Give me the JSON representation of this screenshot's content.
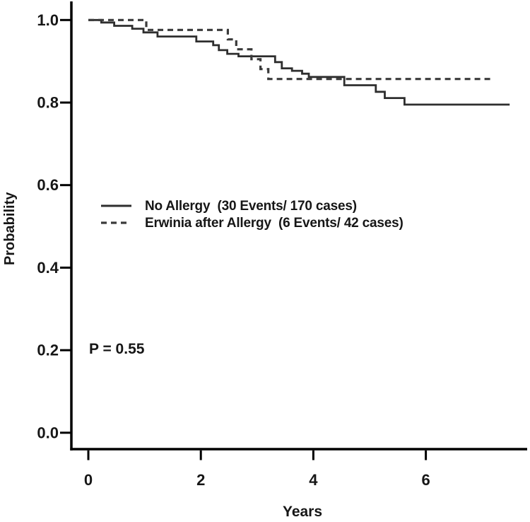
{
  "figure": {
    "background_color": "#ffffff",
    "axis_color": "#000000",
    "text_color": "#161616"
  },
  "chart_data": {
    "type": "line",
    "subtype": "kaplan_meier_step",
    "title": "",
    "xlabel": "Years",
    "ylabel": "Probability",
    "xlim": [
      0,
      7.8
    ],
    "ylim": [
      0.0,
      1.0
    ],
    "grid": false,
    "legend_position": "inside-left-middle",
    "xticks": [
      {
        "value": 0,
        "label": "0"
      },
      {
        "value": 2,
        "label": "2"
      },
      {
        "value": 4,
        "label": "4"
      },
      {
        "value": 6,
        "label": "6"
      }
    ],
    "yticks": [
      {
        "value": 1.0,
        "label": "1.0"
      },
      {
        "value": 0.8,
        "label": "0.8"
      },
      {
        "value": 0.6,
        "label": "0.6"
      },
      {
        "value": 0.4,
        "label": "0.4"
      },
      {
        "value": 0.2,
        "label": "0.2"
      },
      {
        "value": 0.0,
        "label": "0.0"
      }
    ],
    "annotations": [
      {
        "text": "P = 0.55",
        "x": 0.03,
        "y": 0.2
      }
    ],
    "series": [
      {
        "id": "no-allergy",
        "name": "No Allergy  (30 Events/ 170 cases)",
        "events": 30,
        "cases": 170,
        "line_style": "solid",
        "color": "#2e2e2e",
        "end_time": 7.49,
        "steps": [
          [
            0.0,
            1.0
          ],
          [
            0.23,
            0.994
          ],
          [
            0.46,
            0.986
          ],
          [
            0.78,
            0.979
          ],
          [
            0.98,
            0.97
          ],
          [
            1.23,
            0.96
          ],
          [
            1.92,
            0.948
          ],
          [
            2.22,
            0.939
          ],
          [
            2.32,
            0.927
          ],
          [
            2.47,
            0.918
          ],
          [
            2.67,
            0.912
          ],
          [
            3.32,
            0.898
          ],
          [
            3.44,
            0.883
          ],
          [
            3.62,
            0.877
          ],
          [
            3.8,
            0.87
          ],
          [
            3.92,
            0.862
          ],
          [
            4.55,
            0.842
          ],
          [
            5.11,
            0.826
          ],
          [
            5.27,
            0.811
          ],
          [
            5.62,
            0.795
          ]
        ]
      },
      {
        "id": "erwinia-after-allergy",
        "name": "Erwinia after Allergy  (6 Events/ 42 cases)",
        "events": 6,
        "cases": 42,
        "line_style": "dashed",
        "color": "#3a3a3a",
        "end_time": 7.18,
        "steps": [
          [
            0.0,
            1.0
          ],
          [
            1.03,
            0.976
          ],
          [
            2.48,
            0.953
          ],
          [
            2.63,
            0.929
          ],
          [
            2.9,
            0.905
          ],
          [
            3.06,
            0.881
          ],
          [
            3.2,
            0.857
          ]
        ]
      }
    ]
  }
}
